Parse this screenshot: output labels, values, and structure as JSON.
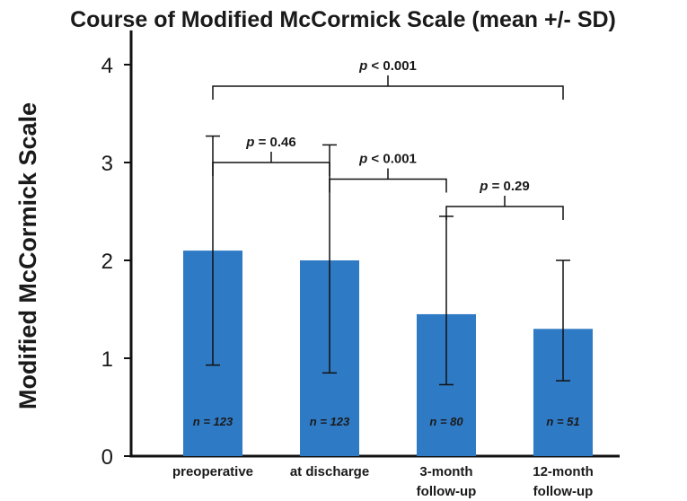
{
  "chart_data": {
    "type": "bar",
    "title": "Course of Modified McCormick Scale (mean +/- SD)",
    "xlabel": "",
    "ylabel": "Modified McCormick Scale",
    "ylim": [
      0,
      4.35
    ],
    "yticks": [
      0,
      1,
      2,
      3,
      4
    ],
    "grid": false,
    "colors": {
      "bar": "#2f7ac4",
      "axis": "#111111",
      "text": "#1a1a1a"
    },
    "categories": [
      [
        "preoperative"
      ],
      [
        "at discharge"
      ],
      [
        "3-month",
        "follow-up"
      ],
      [
        "12-month",
        "follow-up"
      ]
    ],
    "values": [
      2.1,
      2.0,
      1.45,
      1.3
    ],
    "sd_lower": [
      0.93,
      0.85,
      0.73,
      0.77
    ],
    "sd_upper": [
      3.27,
      3.18,
      2.45,
      2.0
    ],
    "n_labels": [
      "n = 123",
      "n = 123",
      "n = 80",
      "n = 51"
    ],
    "comparisons": [
      {
        "from": 0,
        "to": 1,
        "p_prefix": "p",
        "p_value": " = 0.46",
        "level": 3.0
      },
      {
        "from": 1,
        "to": 2,
        "p_prefix": "p",
        "p_value": " < 0.001",
        "level": 2.83
      },
      {
        "from": 2,
        "to": 3,
        "p_prefix": "p",
        "p_value": " = 0.29",
        "level": 2.55
      },
      {
        "from": 0,
        "to": 3,
        "p_prefix": "p",
        "p_value": " < 0.001",
        "level": 3.78
      }
    ]
  }
}
